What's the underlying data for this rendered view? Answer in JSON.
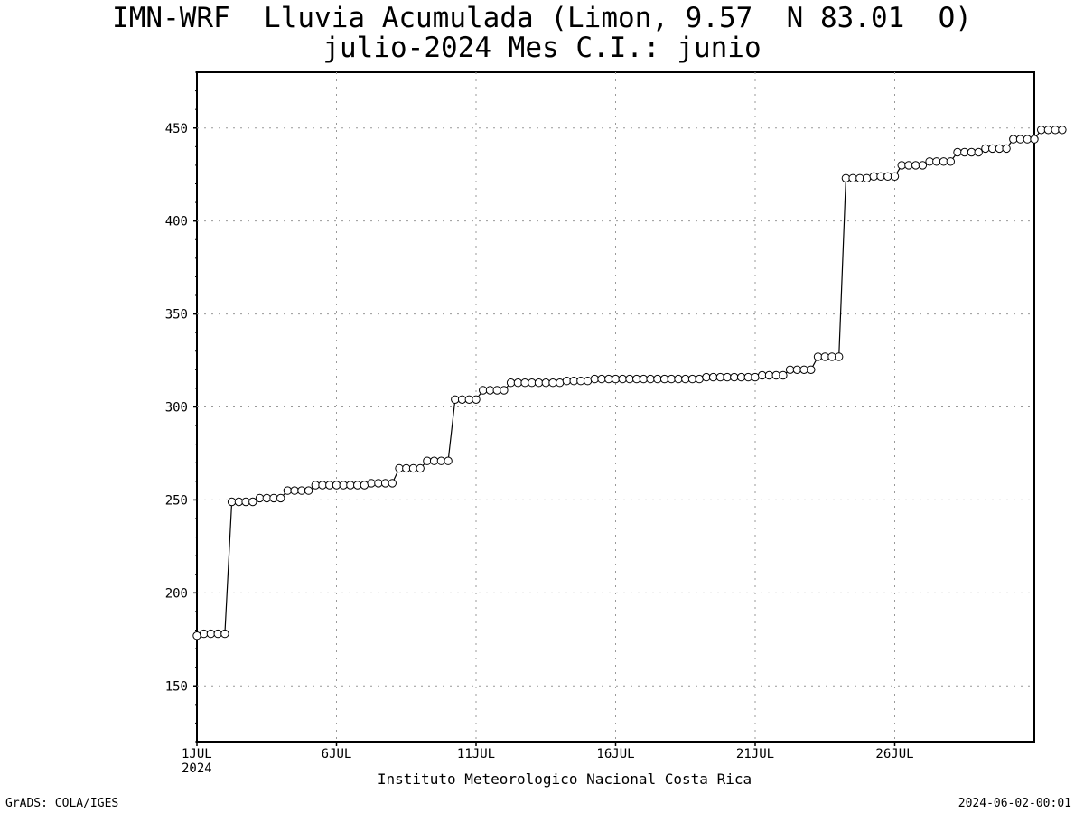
{
  "chart_data": {
    "type": "line",
    "title": "IMN-WRF  Lluvia Acumulada (Limon, 9.57  N 83.01  O)",
    "subtitle": "julio-2024 Mes C.I.: junio",
    "source_label": "Instituto Meteorologico Nacional Costa Rica",
    "xlabel": "",
    "ylabel": "",
    "x_ticks": [
      "1JUL",
      "6JUL",
      "11JUL",
      "16JUL",
      "21JUL",
      "26JUL"
    ],
    "x_tick_year": "2024",
    "x_range_days": [
      1,
      31
    ],
    "x_step_days": 0.25,
    "ylim": [
      120,
      480
    ],
    "y_ticks": [
      150,
      200,
      250,
      300,
      350,
      400,
      450
    ],
    "grid": true,
    "marker": "open-circle",
    "series": [
      {
        "values": [
          177,
          178,
          178,
          178,
          178,
          249,
          249,
          249,
          249,
          251,
          251,
          251,
          251,
          255,
          255,
          255,
          255,
          258,
          258,
          258,
          258,
          258,
          258,
          258,
          258,
          259,
          259,
          259,
          259,
          267,
          267,
          267,
          267,
          271,
          271,
          271,
          271,
          304,
          304,
          304,
          304,
          309,
          309,
          309,
          309,
          313,
          313,
          313,
          313,
          313,
          313,
          313,
          313,
          314,
          314,
          314,
          314,
          315,
          315,
          315,
          315,
          315,
          315,
          315,
          315,
          315,
          315,
          315,
          315,
          315,
          315,
          315,
          315,
          316,
          316,
          316,
          316,
          316,
          316,
          316,
          316,
          317,
          317,
          317,
          317,
          320,
          320,
          320,
          320,
          327,
          327,
          327,
          327,
          423,
          423,
          423,
          423,
          424,
          424,
          424,
          424,
          430,
          430,
          430,
          430,
          432,
          432,
          432,
          432,
          437,
          437,
          437,
          437,
          439,
          439,
          439,
          439,
          444,
          444,
          444,
          444,
          449,
          449,
          449,
          449
        ]
      }
    ]
  },
  "footer": {
    "left": "GrADS: COLA/IGES",
    "right": "2024-06-02-00:01"
  }
}
